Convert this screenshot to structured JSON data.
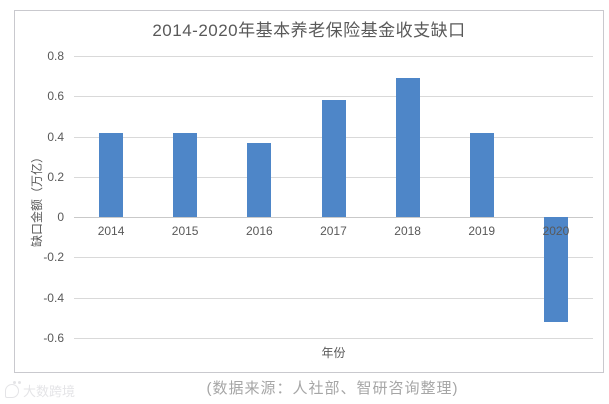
{
  "source_note": "(数据来源：人社部、智研咨询整理)",
  "watermark": "大数跨境",
  "colors": {
    "bar": "#4e86c8",
    "gridline": "#d9d9d9",
    "zero_line": "#c9c9c9",
    "text": "#595959",
    "source_text": "#a6a6a6",
    "border": "#c9c9ce"
  },
  "chart_data": {
    "type": "bar",
    "title": "2014-2020年基本养老保险基金收支缺口",
    "categories": [
      "2014",
      "2015",
      "2016",
      "2017",
      "2018",
      "2019",
      "2020"
    ],
    "values": [
      0.42,
      0.42,
      0.37,
      0.58,
      0.69,
      0.42,
      -0.52
    ],
    "xlabel": "年份",
    "ylabel": "缺口金额（万亿）",
    "ylim": [
      -0.6,
      0.8
    ],
    "yticks": [
      0.8,
      0.6,
      0.4,
      0.2,
      0,
      -0.2,
      -0.4,
      -0.6
    ],
    "ytick_labels": [
      "0.8",
      "0.6",
      "0.4",
      "0.2",
      "0",
      "-0.2",
      "-0.4",
      "-0.6"
    ],
    "grid": true,
    "legend": "none",
    "bar_color_hex": "#4e86c8"
  }
}
